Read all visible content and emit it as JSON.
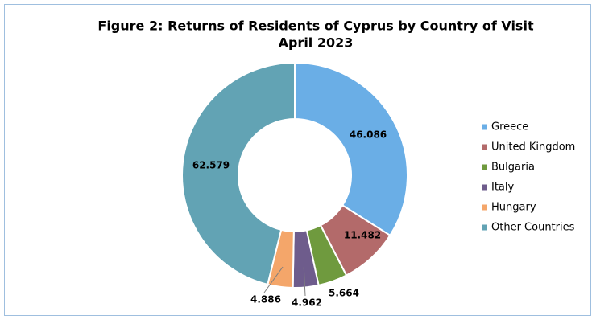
{
  "chart_data": {
    "type": "donut",
    "title": [
      "Figure 2: Returns of Residents of Cyprus by Country of Visit",
      "April 2023"
    ],
    "categories": [
      "Greece",
      "United Kingdom",
      "Bulgaria",
      "Italy",
      "Hungary",
      "Other Countries"
    ],
    "values": [
      46.086,
      11.482,
      5.664,
      4.962,
      4.886,
      62.579
    ],
    "colors": [
      "#6aaee6",
      "#b36a6a",
      "#6f9a3e",
      "#6e5c8c",
      "#f4a66a",
      "#62a3b4"
    ],
    "legend": "right"
  }
}
